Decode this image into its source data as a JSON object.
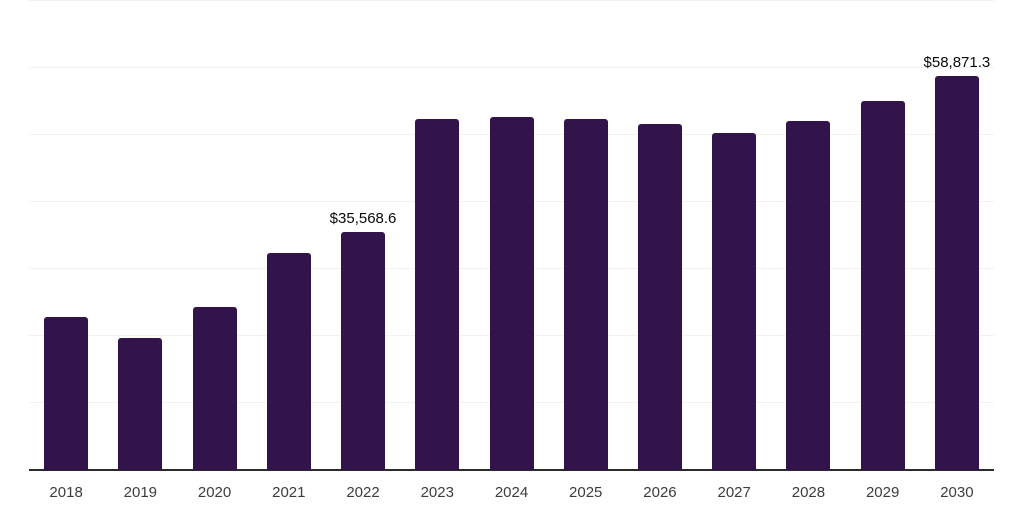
{
  "chart_data": {
    "type": "bar",
    "title": "",
    "xlabel": "",
    "ylabel": "",
    "categories": [
      "2018",
      "2019",
      "2020",
      "2021",
      "2022",
      "2023",
      "2024",
      "2025",
      "2026",
      "2027",
      "2028",
      "2029",
      "2030"
    ],
    "values": [
      22900,
      19700,
      24350,
      32450,
      35568.6,
      52400,
      52650,
      52350,
      51600,
      50350,
      52100,
      55000,
      58871.3
    ],
    "point_labels": {
      "2022": "$35,568.6",
      "2030": "$58,871.3"
    },
    "ylim": [
      0,
      70000
    ],
    "gridline_step": 10000,
    "grid": true,
    "legend": false,
    "colors": {
      "bar": "#32134A",
      "gridline": "#F2F2F2",
      "axis_line": "#2A2A2A",
      "tick_label": "#3D3D3D",
      "data_label": "#0A0A0A",
      "background": "#FFFFFF"
    }
  }
}
